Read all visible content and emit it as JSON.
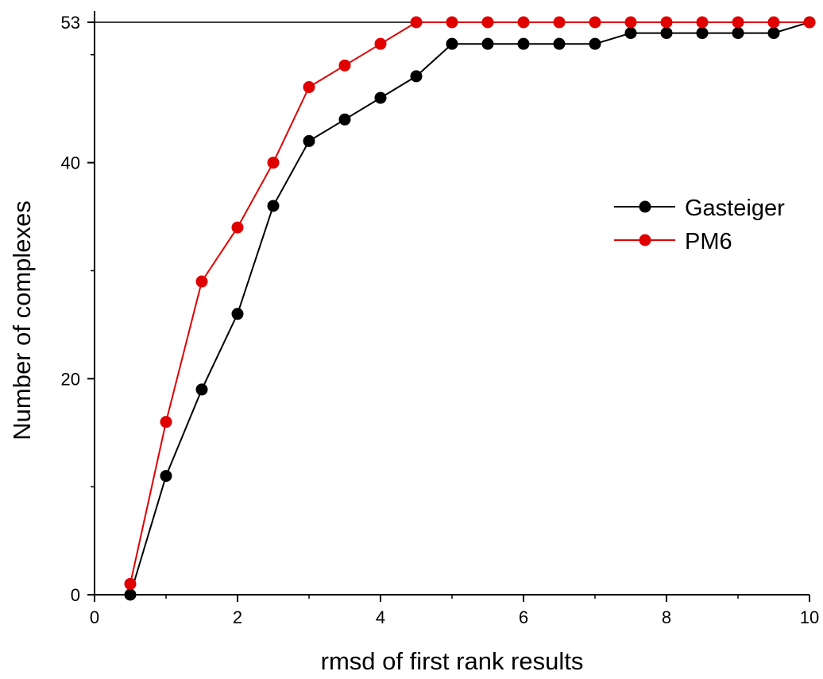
{
  "chart_data": {
    "type": "line",
    "title": "",
    "xlabel": "rmsd of first rank results",
    "ylabel": "Number of complexes",
    "xlim": [
      0,
      10
    ],
    "ylim": [
      0,
      53
    ],
    "x_ticks": [
      0,
      2,
      4,
      6,
      8,
      10
    ],
    "x_tick_labels": [
      "0",
      "2",
      "4",
      "6",
      "8",
      "10"
    ],
    "y_ticks": [
      0,
      20,
      40,
      53
    ],
    "y_tick_labels": [
      "0",
      "20",
      "40",
      "53"
    ],
    "reference_line": 53,
    "grid": false,
    "legend_position": "right",
    "x": [
      0.5,
      1.0,
      1.5,
      2.0,
      2.5,
      3.0,
      3.5,
      4.0,
      4.5,
      5.0,
      5.5,
      6.0,
      6.5,
      7.0,
      7.5,
      8.0,
      8.5,
      9.0,
      9.5,
      10.0
    ],
    "series": [
      {
        "name": "Gasteiger",
        "color": "#000000",
        "marker": "circle",
        "values": [
          0,
          11,
          19,
          26,
          36,
          42,
          44,
          46,
          48,
          51,
          51,
          51,
          51,
          51,
          52,
          52,
          52,
          52,
          52,
          53
        ]
      },
      {
        "name": "PM6",
        "color": "#e00000",
        "marker": "circle",
        "values": [
          1,
          16,
          29,
          34,
          40,
          47,
          49,
          51,
          53,
          53,
          53,
          53,
          53,
          53,
          53,
          53,
          53,
          53,
          53,
          53
        ]
      }
    ]
  }
}
